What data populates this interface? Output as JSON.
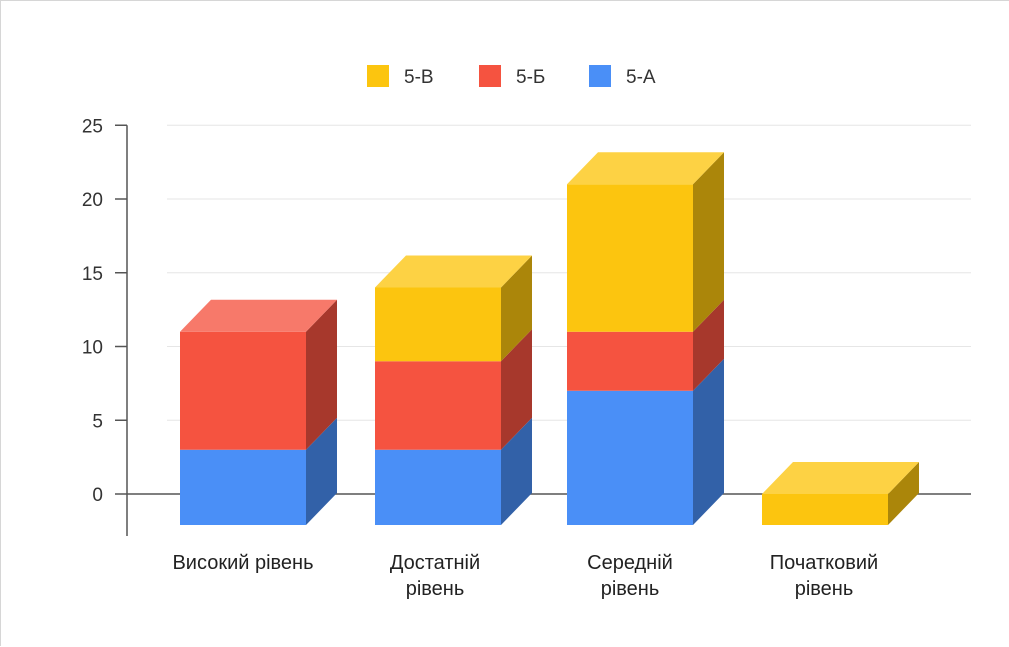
{
  "chart_data": {
    "type": "bar",
    "stacked": true,
    "three_d": true,
    "categories": [
      [
        "Високий рівень"
      ],
      [
        "Достатній",
        "рівень"
      ],
      [
        "Середній",
        "рівень"
      ],
      [
        "Початковий",
        "рівень"
      ]
    ],
    "series": [
      {
        "name": "5-А",
        "color": "#4a8ff7",
        "values": [
          3,
          3,
          7,
          0
        ]
      },
      {
        "name": "5-Б",
        "color": "#f55340",
        "values": [
          8,
          6,
          4,
          0
        ]
      },
      {
        "name": "5-В",
        "color": "#fcc50f",
        "values": [
          0,
          5,
          10,
          0
        ]
      }
    ],
    "legend_order": [
      "5-В",
      "5-Б",
      "5-А"
    ],
    "legend_position": "top",
    "yticks": [
      25,
      20,
      15,
      10,
      5,
      0
    ],
    "ylim": [
      0,
      25
    ],
    "grid": true
  }
}
